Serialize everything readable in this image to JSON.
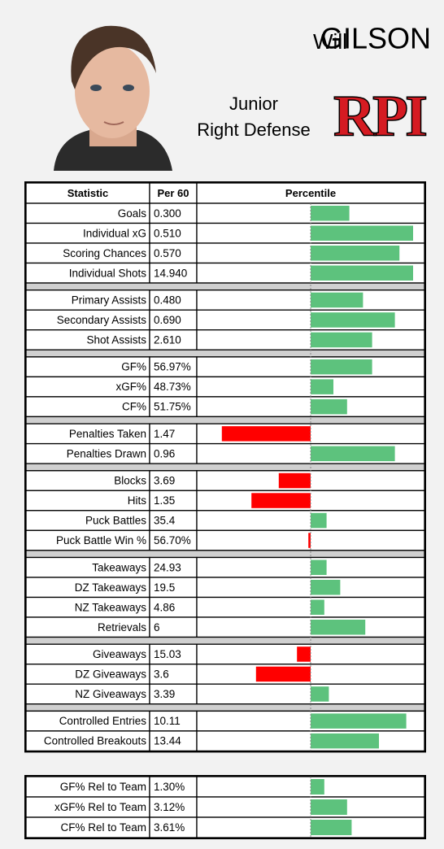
{
  "player": {
    "first_name": "Will",
    "last_name": "GILSON",
    "year": "Junior",
    "position": "Right Defense",
    "team_logo": "RPI"
  },
  "table": {
    "headers": [
      "Statistic",
      "Per 60",
      "Percentile"
    ],
    "percentile_range": [
      0,
      100
    ],
    "colors": {
      "above": "#5dc27d",
      "below": "#ff0000"
    },
    "groups": [
      [
        {
          "stat": "Goals",
          "per60": "0.300",
          "percentile": 67
        },
        {
          "stat": "Individual xG",
          "per60": "0.510",
          "percentile": 95
        },
        {
          "stat": "Scoring Chances",
          "per60": "0.570",
          "percentile": 89
        },
        {
          "stat": "Individual Shots",
          "per60": "14.940",
          "percentile": 95
        }
      ],
      [
        {
          "stat": "Primary Assists",
          "per60": "0.480",
          "percentile": 73
        },
        {
          "stat": "Secondary Assists",
          "per60": "0.690",
          "percentile": 87
        },
        {
          "stat": "Shot Assists",
          "per60": "2.610",
          "percentile": 77
        }
      ],
      [
        {
          "stat": "GF%",
          "per60": "56.97%",
          "percentile": 77
        },
        {
          "stat": "xGF%",
          "per60": "48.73%",
          "percentile": 60
        },
        {
          "stat": "CF%",
          "per60": "51.75%",
          "percentile": 66
        }
      ],
      [
        {
          "stat": "Penalties Taken",
          "per60": "1.47",
          "percentile": 11
        },
        {
          "stat": "Penalties Drawn",
          "per60": "0.96",
          "percentile": 87
        }
      ],
      [
        {
          "stat": "Blocks",
          "per60": "3.69",
          "percentile": 36
        },
        {
          "stat": "Hits",
          "per60": "1.35",
          "percentile": 24
        },
        {
          "stat": "Puck Battles",
          "per60": "35.4",
          "percentile": 57
        },
        {
          "stat": "Puck Battle Win %",
          "per60": "56.70%",
          "percentile": 49
        }
      ],
      [
        {
          "stat": "Takeaways",
          "per60": "24.93",
          "percentile": 57
        },
        {
          "stat": "DZ Takeaways",
          "per60": "19.5",
          "percentile": 63
        },
        {
          "stat": "NZ Takeaways",
          "per60": "4.86",
          "percentile": 56
        },
        {
          "stat": "Retrievals",
          "per60": "6",
          "percentile": 74
        }
      ],
      [
        {
          "stat": "Giveaways",
          "per60": "15.03",
          "percentile": 44
        },
        {
          "stat": "DZ Giveaways",
          "per60": "3.6",
          "percentile": 26
        },
        {
          "stat": "NZ Giveaways",
          "per60": "3.39",
          "percentile": 58
        }
      ],
      [
        {
          "stat": "Controlled Entries",
          "per60": "10.11",
          "percentile": 92
        },
        {
          "stat": "Controlled Breakouts",
          "per60": "13.44",
          "percentile": 80
        }
      ]
    ]
  },
  "rel_table": {
    "rows": [
      {
        "stat": "GF% Rel to Team",
        "per60": "1.30%",
        "percentile": 56
      },
      {
        "stat": "xGF% Rel to Team",
        "per60": "3.12%",
        "percentile": 66
      },
      {
        "stat": "CF% Rel to Team",
        "per60": "3.61%",
        "percentile": 68
      }
    ]
  }
}
